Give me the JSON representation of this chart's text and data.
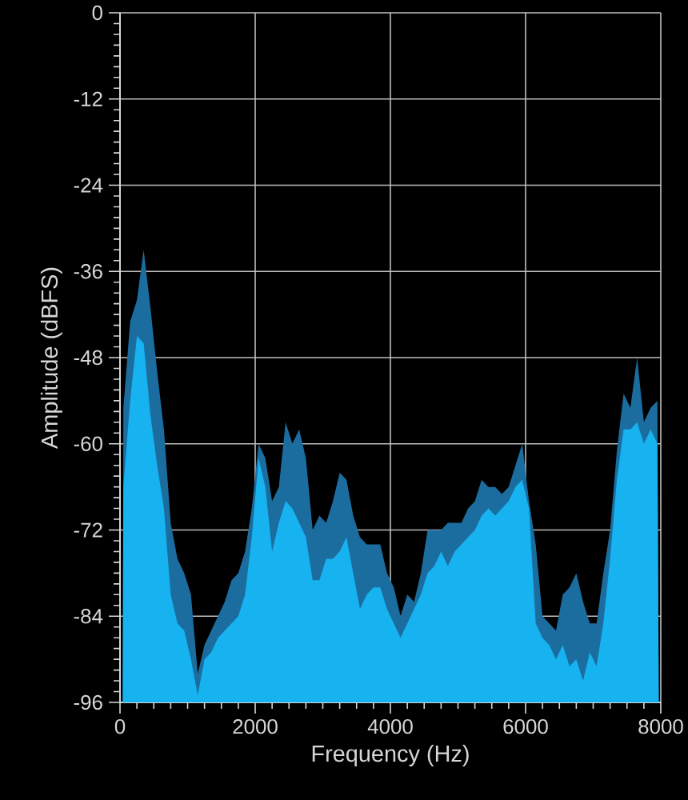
{
  "chart_data": {
    "type": "area",
    "xlabel": "Frequency (Hz)",
    "ylabel": "Amplitude (dBFS)",
    "x": [
      40,
      50,
      150,
      250,
      350,
      450,
      550,
      650,
      750,
      850,
      950,
      1050,
      1150,
      1250,
      1350,
      1450,
      1550,
      1650,
      1750,
      1850,
      1950,
      2050,
      2150,
      2250,
      2350,
      2450,
      2550,
      2650,
      2750,
      2850,
      2950,
      3050,
      3150,
      3250,
      3350,
      3450,
      3550,
      3650,
      3750,
      3850,
      3950,
      4050,
      4150,
      4250,
      4350,
      4450,
      4550,
      4650,
      4750,
      4850,
      4950,
      5050,
      5150,
      5250,
      5350,
      5450,
      5550,
      5650,
      5750,
      5850,
      5950,
      6050,
      6150,
      6250,
      6350,
      6450,
      6550,
      6650,
      6750,
      6850,
      6950,
      7050,
      7150,
      7250,
      7350,
      7450,
      7550,
      7650,
      7750,
      7850,
      7950,
      7970
    ],
    "series": [
      {
        "color": "#1b6d9f",
        "values": [
          -96,
          -55,
          -43,
          -40,
          -33,
          -41,
          -50,
          -58,
          -71,
          -76,
          -78,
          -81,
          -92,
          -88,
          -86,
          -84,
          -82,
          -79,
          -78,
          -75,
          -69,
          -60,
          -62,
          -68,
          -66,
          -57,
          -60,
          -58,
          -62,
          -72,
          -70,
          -71,
          -68,
          -64,
          -65,
          -70,
          -73,
          -74,
          -74,
          -74,
          -78,
          -80,
          -84,
          -81,
          -82,
          -78,
          -72,
          -72,
          -72,
          -71,
          -71,
          -71,
          -69,
          -68,
          -65,
          -66,
          -66,
          -67,
          -66,
          -63,
          -60,
          -68,
          -74,
          -84,
          -85,
          -86,
          -81,
          -80,
          -78,
          -82,
          -85,
          -85,
          -78,
          -72,
          -61,
          -53,
          -55,
          -48,
          -57,
          -55,
          -54,
          -96
        ]
      },
      {
        "color": "#17b2f0",
        "values": [
          -96,
          -66,
          -54,
          -45,
          -46,
          -56,
          -63,
          -69,
          -81,
          -85,
          -86,
          -90,
          -95,
          -90,
          -89,
          -87,
          -86,
          -85,
          -84,
          -81,
          -73,
          -62,
          -66,
          -75,
          -71,
          -68,
          -69,
          -71,
          -73,
          -79,
          -79,
          -76,
          -76,
          -75,
          -73,
          -78,
          -83,
          -81,
          -80,
          -80,
          -83,
          -85,
          -87,
          -85,
          -83,
          -81,
          -78,
          -77,
          -75,
          -77,
          -75,
          -74,
          -73,
          -72,
          -70,
          -69,
          -70,
          -69,
          -68,
          -66,
          -65,
          -69,
          -85,
          -87,
          -88,
          -90,
          -88,
          -91,
          -90,
          -93,
          -89,
          -91,
          -85,
          -76,
          -65,
          -58,
          -58,
          -57,
          -60,
          -58,
          -60,
          -96
        ]
      }
    ],
    "xlim": [
      0,
      8000
    ],
    "ylim": [
      -96,
      0
    ],
    "xticks": [
      0,
      2000,
      4000,
      6000,
      8000
    ],
    "yticks": [
      -96,
      -84,
      -72,
      -60,
      -48,
      -36,
      -24,
      -12,
      0
    ],
    "grid": true
  }
}
